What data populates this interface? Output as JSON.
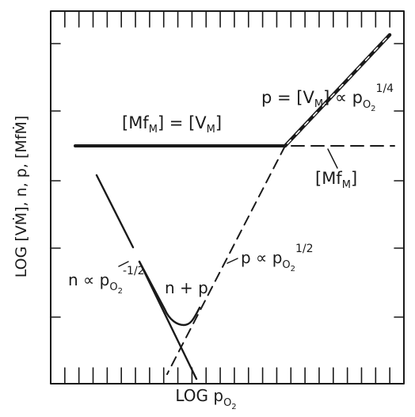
{
  "axes": {
    "x_label_main": "LOG p",
    "x_label_sub": "O",
    "x_label_subsub": "2",
    "y_label": "LOG [VṀ], n, p, [MfṀ]"
  },
  "labels": {
    "p_high": {
      "lhs": "p = [V",
      "sub": "M",
      "rhs": "] ∝ p",
      "p_sub": "O",
      "p_subsub": "2",
      "exponent": "1/4"
    },
    "plateau": {
      "left_open": "[Mf",
      "left_sub": "M",
      "middle": "] = [V",
      "right_sub": "M",
      "right_close": "]"
    },
    "mf": {
      "open": "[Mf",
      "sub": "M",
      "close": "]"
    },
    "p_mid": {
      "text": "p ∝ p",
      "p_sub": "O",
      "p_subsub": "2",
      "exponent": "1/2"
    },
    "n_left": {
      "text": "n ∝ p",
      "p_sub": "O",
      "p_subsub": "2",
      "exponent": "-1/2"
    },
    "n_plus_p": "n + p"
  },
  "colors": {
    "ink": "#1a1a1a",
    "paper": "#ffffff"
  }
}
